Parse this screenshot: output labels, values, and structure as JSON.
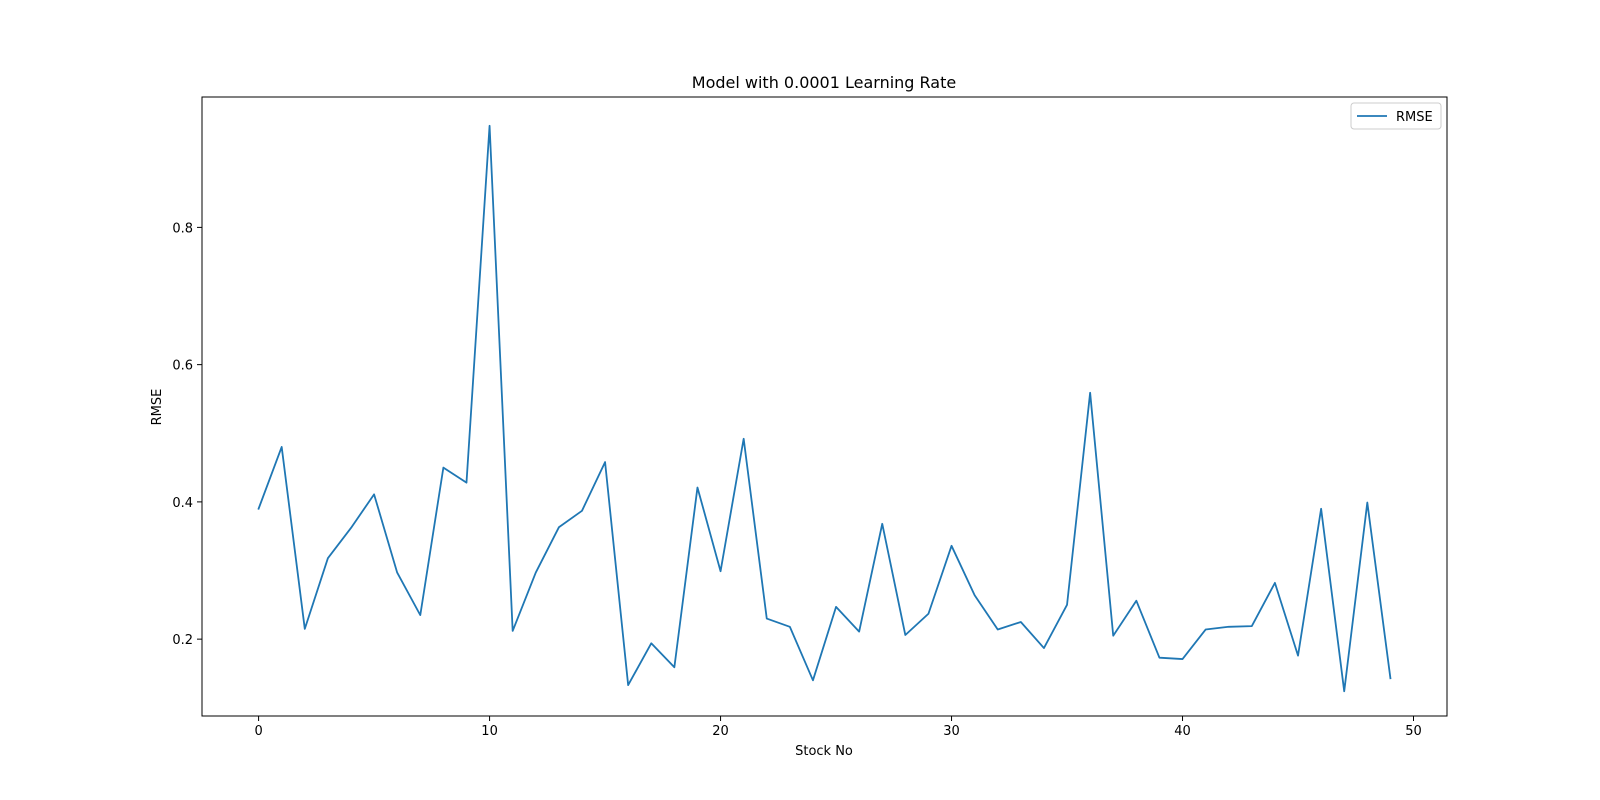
{
  "chart_data": {
    "type": "line",
    "title": "Model with 0.0001 Learning Rate",
    "xlabel": "Stock No",
    "ylabel": "RMSE",
    "xlim": [
      -2.45,
      51.45
    ],
    "ylim": [
      0.088,
      0.99
    ],
    "xticks": [
      0,
      10,
      20,
      30,
      40,
      50
    ],
    "xtick_labels": [
      "0",
      "10",
      "20",
      "30",
      "40",
      "50"
    ],
    "yticks": [
      0.2,
      0.4,
      0.6,
      0.8
    ],
    "ytick_labels": [
      "0.2",
      "0.4",
      "0.6",
      "0.8"
    ],
    "grid": false,
    "legend_position": "top-right",
    "series": [
      {
        "name": "RMSE",
        "color": "#1f77b4",
        "x": [
          0,
          1,
          2,
          3,
          4,
          5,
          6,
          7,
          8,
          9,
          10,
          11,
          12,
          13,
          14,
          15,
          16,
          17,
          18,
          19,
          20,
          21,
          22,
          23,
          24,
          25,
          26,
          27,
          28,
          29,
          30,
          31,
          32,
          33,
          34,
          35,
          36,
          37,
          38,
          39,
          40,
          41,
          42,
          43,
          44,
          45,
          46,
          47,
          48,
          49
        ],
        "values": [
          0.39,
          0.48,
          0.215,
          0.318,
          0.362,
          0.411,
          0.297,
          0.235,
          0.45,
          0.428,
          0.948,
          0.212,
          0.297,
          0.363,
          0.387,
          0.458,
          0.133,
          0.194,
          0.159,
          0.421,
          0.299,
          0.492,
          0.23,
          0.218,
          0.14,
          0.247,
          0.211,
          0.368,
          0.206,
          0.237,
          0.336,
          0.264,
          0.214,
          0.225,
          0.187,
          0.25,
          0.559,
          0.205,
          0.256,
          0.173,
          0.171,
          0.214,
          0.218,
          0.219,
          0.282,
          0.176,
          0.39,
          0.124,
          0.399,
          0.143
        ]
      }
    ]
  }
}
